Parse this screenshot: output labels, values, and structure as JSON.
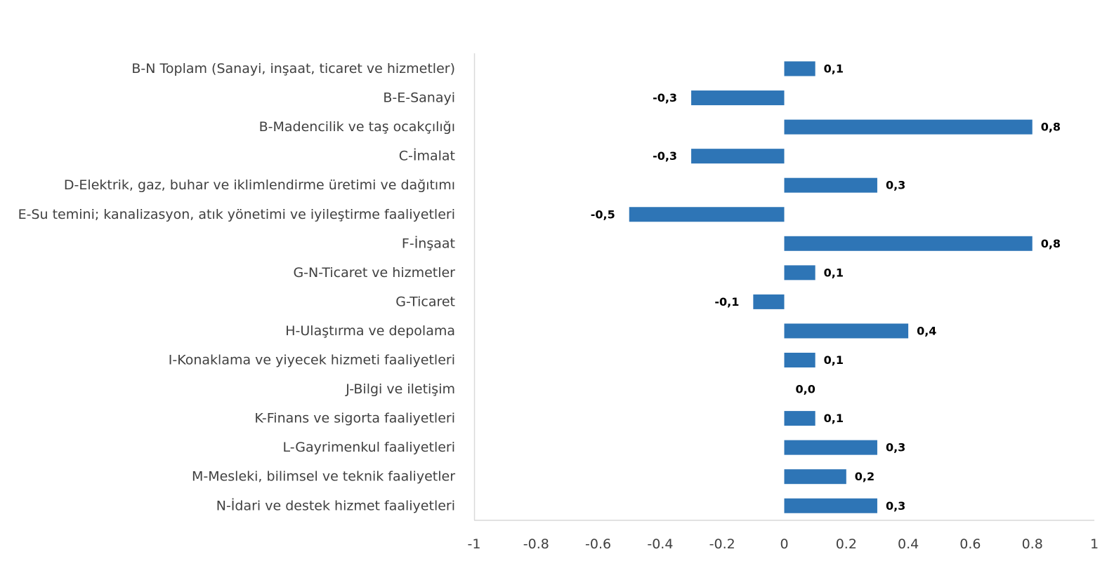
{
  "chart_data": {
    "type": "bar",
    "orientation": "horizontal",
    "categories": [
      "B-N Toplam (Sanayi, inşaat, ticaret ve hizmetler)",
      "B-E-Sanayi",
      "B-Madencilik ve taş ocakçılığı",
      "C-İmalat",
      "D-Elektrik, gaz, buhar ve iklimlendirme üretimi ve dağıtımı",
      "E-Su temini; kanalizasyon, atık yönetimi ve iyileştirme faaliyetleri",
      "F-İnşaat",
      "G-N-Ticaret ve hizmetler",
      "G-Ticaret",
      "H-Ulaştırma ve depolama",
      "I-Konaklama ve yiyecek hizmeti faaliyetleri",
      "J-Bilgi ve iletişim",
      "K-Finans ve sigorta faaliyetleri",
      "L-Gayrimenkul faaliyetleri",
      "M-Mesleki, bilimsel ve teknik faaliyetler",
      "N-İdari ve destek hizmet faaliyetleri"
    ],
    "values": [
      0.1,
      -0.3,
      0.8,
      -0.3,
      0.3,
      -0.5,
      0.8,
      0.1,
      -0.1,
      0.4,
      0.1,
      0.0,
      0.1,
      0.3,
      0.2,
      0.3
    ],
    "value_labels": [
      "0,1",
      "-0,3",
      "0,8",
      "-0,3",
      "0,3",
      "-0,5",
      "0,8",
      "0,1",
      "-0,1",
      "0,4",
      "0,1",
      "0,0",
      "0,1",
      "0,3",
      "0,2",
      "0,3"
    ],
    "xlim": [
      -1,
      1
    ],
    "xticks": [
      -1,
      -0.8,
      -0.6,
      -0.4,
      -0.2,
      0,
      0.2,
      0.4,
      0.6,
      0.8,
      1
    ],
    "xtick_labels": [
      "-1",
      "-0.8",
      "-0.6",
      "-0.4",
      "-0.2",
      "0",
      "0.2",
      "0.4",
      "0.6",
      "0.8",
      "1"
    ],
    "title": "",
    "xlabel": "",
    "ylabel": "",
    "grid": false,
    "legend": "none",
    "bar_color": "#2E75B6",
    "axis_color": "#D9D9D9"
  }
}
